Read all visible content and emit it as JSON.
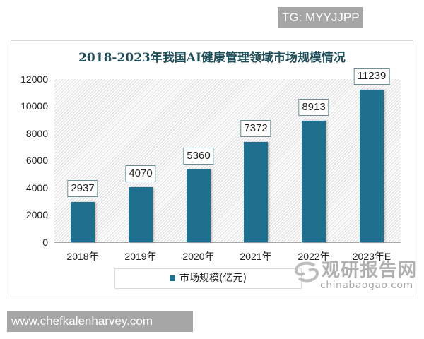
{
  "overlay": {
    "tg_badge": "TG: MYYJJPP",
    "site_badge": "www.chefkalenharvey.com"
  },
  "watermark": {
    "cn": "观研报告网",
    "en": "chinabaogao.com"
  },
  "chart": {
    "title": "2018-2023年我国AI健康管理领域市场规模情况",
    "legend": "市场规模(亿元)",
    "bar_color": "#1f6f8f",
    "yticks": [
      "12000",
      "10000",
      "8000",
      "6000",
      "4000",
      "2000",
      "0"
    ],
    "categories": [
      "2018年",
      "2019年",
      "2020年",
      "2021年",
      "2022年",
      "2023年E"
    ],
    "labels": [
      "2937",
      "4070",
      "5360",
      "7372",
      "8913",
      "11239"
    ]
  },
  "chart_data": {
    "type": "bar",
    "title": "2018-2023年我国AI健康管理领域市场规模情况",
    "categories": [
      "2018年",
      "2019年",
      "2020年",
      "2021年",
      "2022年",
      "2023年E"
    ],
    "series": [
      {
        "name": "市场规模(亿元)",
        "values": [
          2937,
          4070,
          5360,
          7372,
          8913,
          11239
        ]
      }
    ],
    "xlabel": "",
    "ylabel": "",
    "ylim": [
      0,
      12000
    ],
    "yticks": [
      0,
      2000,
      4000,
      6000,
      8000,
      10000,
      12000
    ],
    "grid": false,
    "legend_position": "bottom",
    "data_labels": true
  }
}
